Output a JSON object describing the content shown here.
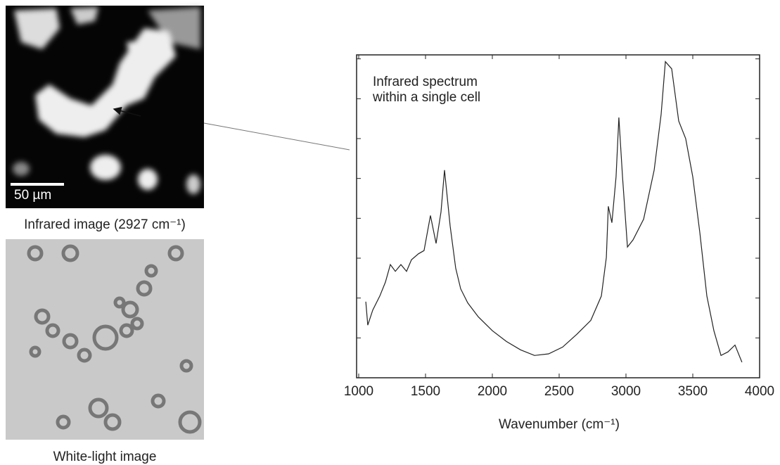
{
  "panels": {
    "infrared_image": {
      "caption": "Infrared image (2927 cm⁻¹)",
      "scale_bar": "50 µm"
    },
    "white_light_image": {
      "caption": "White-light image"
    }
  },
  "chart_data": {
    "type": "line",
    "annotation": [
      "Infrared spectrum",
      "within a single cell"
    ],
    "x_label": "Wavenumber (cm⁻¹)",
    "xlim": [
      1000,
      4000
    ],
    "xticks": [
      1000,
      1500,
      2000,
      2500,
      3000,
      3500,
      4000
    ],
    "ylim": [
      0,
      8.1
    ],
    "yticks": [
      1,
      2,
      3,
      4,
      5,
      6,
      7,
      8
    ],
    "color": "#222222",
    "x": [
      1053,
      1068,
      1105,
      1158,
      1200,
      1237,
      1274,
      1316,
      1358,
      1395,
      1447,
      1489,
      1537,
      1579,
      1616,
      1642,
      1684,
      1726,
      1763,
      1816,
      1895,
      2000,
      2105,
      2211,
      2316,
      2421,
      2526,
      2632,
      2737,
      2816,
      2853,
      2868,
      2895,
      2926,
      2947,
      2974,
      3011,
      3053,
      3132,
      3211,
      3263,
      3295,
      3342,
      3395,
      3447,
      3500,
      3553,
      3605,
      3658,
      3711,
      3763,
      3816,
      3868
    ],
    "values": [
      1.91,
      1.32,
      1.7,
      2.05,
      2.4,
      2.84,
      2.67,
      2.84,
      2.67,
      2.96,
      3.11,
      3.19,
      4.07,
      3.37,
      4.16,
      5.21,
      3.81,
      2.75,
      2.23,
      1.88,
      1.53,
      1.18,
      0.91,
      0.7,
      0.56,
      0.6,
      0.77,
      1.09,
      1.44,
      2.05,
      3.02,
      4.3,
      3.89,
      5.04,
      6.53,
      5.04,
      3.28,
      3.46,
      3.98,
      5.21,
      6.61,
      7.93,
      7.75,
      6.44,
      6.0,
      5.04,
      3.63,
      2.05,
      1.18,
      0.56,
      0.65,
      0.82,
      0.39
    ]
  }
}
